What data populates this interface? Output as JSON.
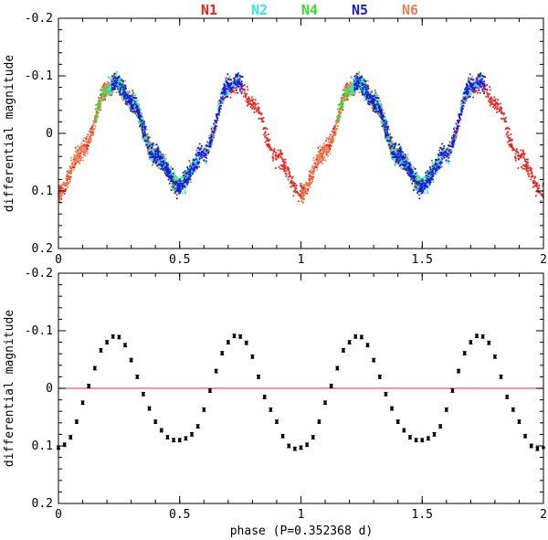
{
  "chart_data": [
    {
      "type": "scatter",
      "xlabel": "",
      "ylabel": "differential magnitude",
      "xlim": [
        0,
        2
      ],
      "ylim": [
        -0.2,
        0.2
      ],
      "y_inverted": true,
      "xticks": [
        0,
        0.5,
        1,
        1.5,
        2
      ],
      "xtick_labels": [
        "0",
        "0.5",
        "1",
        "1.5",
        "2"
      ],
      "yticks": [
        -0.2,
        -0.1,
        0,
        0.1,
        0.2
      ],
      "ytick_labels": [
        "-0.2",
        "-0.1",
        "0",
        "0.1",
        "0.2"
      ],
      "legend_position": "top",
      "series": [
        {
          "name": "N1",
          "color": "#e8231a",
          "phase_range": [
            0.0,
            1.0
          ],
          "approx_points": 900
        },
        {
          "name": "N2",
          "color": "#33e6e6",
          "phase_range": [
            0.2,
            0.75
          ],
          "approx_points": 500
        },
        {
          "name": "N4",
          "color": "#33dd33",
          "phase_range": [
            0.15,
            0.55
          ],
          "approx_points": 450
        },
        {
          "name": "N5",
          "color": "#1a1ad9",
          "phase_range": [
            0.22,
            0.76
          ],
          "approx_points": 700
        },
        {
          "name": "N6",
          "color": "#f08050",
          "phase_range": [
            0.0,
            0.45
          ],
          "approx_points": 500
        }
      ],
      "light_curve_model": {
        "phase_deg0": [
          0,
          0.1,
          0.2,
          0.24,
          0.3,
          0.4,
          0.5,
          0.6,
          0.7,
          0.74,
          0.8,
          0.9,
          1.0
        ],
        "magnitude": [
          0.105,
          0.03,
          -0.075,
          -0.088,
          -0.055,
          0.04,
          0.09,
          0.035,
          -0.08,
          -0.09,
          -0.05,
          0.04,
          0.105
        ]
      }
    },
    {
      "type": "scatter",
      "xlabel": "phase (P=0.352368 d)",
      "ylabel": "differential magnitude",
      "xlim": [
        0,
        2
      ],
      "ylim": [
        -0.2,
        0.2
      ],
      "y_inverted": true,
      "xticks": [
        0,
        0.5,
        1,
        1.5,
        2
      ],
      "xtick_labels": [
        "0",
        "0.5",
        "1",
        "1.5",
        "2"
      ],
      "yticks": [
        -0.2,
        -0.1,
        0,
        0.1,
        0.2
      ],
      "ytick_labels": [
        "-0.2",
        "-0.1",
        "0",
        "0.1",
        "0.2"
      ],
      "reference_line": {
        "y": 0,
        "color": "#e06060"
      },
      "series": [
        {
          "name": "binned mean",
          "color": "#000000",
          "phase": [
            0.0,
            0.025,
            0.05,
            0.075,
            0.1,
            0.125,
            0.15,
            0.175,
            0.2,
            0.225,
            0.25,
            0.275,
            0.3,
            0.325,
            0.35,
            0.375,
            0.4,
            0.425,
            0.45,
            0.475,
            0.5,
            0.525,
            0.55,
            0.575,
            0.6,
            0.625,
            0.65,
            0.675,
            0.7,
            0.725,
            0.75,
            0.775,
            0.8,
            0.825,
            0.85,
            0.875,
            0.9,
            0.925,
            0.95,
            0.975
          ],
          "magnitude": [
            0.103,
            0.098,
            0.085,
            0.058,
            0.025,
            -0.004,
            -0.035,
            -0.066,
            -0.08,
            -0.09,
            -0.089,
            -0.075,
            -0.049,
            -0.02,
            0.01,
            0.035,
            0.058,
            0.073,
            0.085,
            0.09,
            0.09,
            0.087,
            0.08,
            0.066,
            0.037,
            0.004,
            -0.03,
            -0.061,
            -0.08,
            -0.091,
            -0.09,
            -0.079,
            -0.055,
            -0.02,
            0.015,
            0.037,
            0.058,
            0.083,
            0.1,
            0.105
          ],
          "error": 0.003
        }
      ]
    }
  ]
}
